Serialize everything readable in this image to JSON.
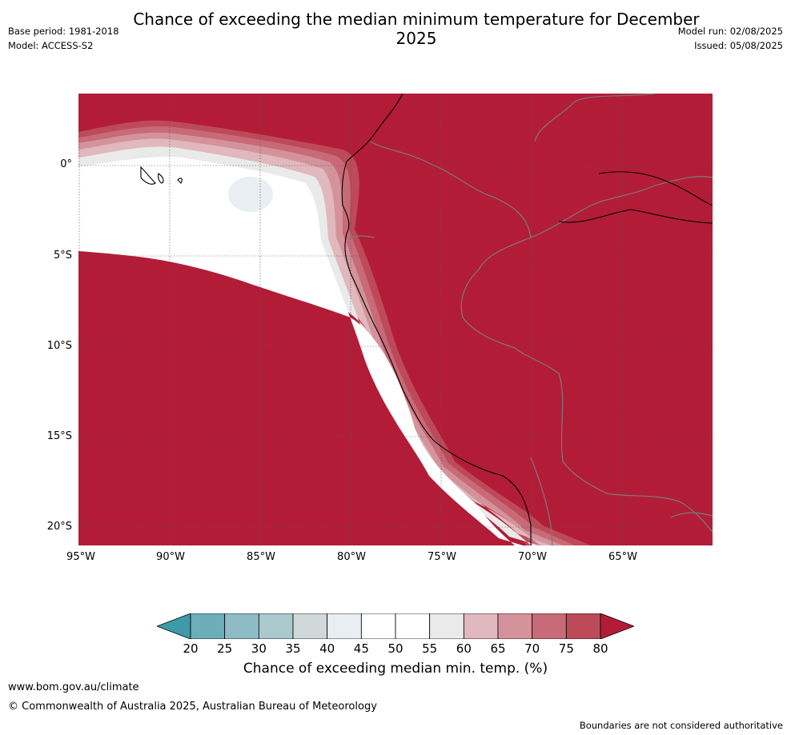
{
  "title": "Chance of exceeding the median minimum temperature for December 2025",
  "meta_left": {
    "base_period": "Base period: 1981-2018",
    "model": "Model: ACCESS-S2"
  },
  "meta_right": {
    "model_run": "Model run: 02/08/2025",
    "issued": "Issued: 05/08/2025"
  },
  "map": {
    "lat_labels": [
      "0°",
      "5°S",
      "10°S",
      "15°S",
      "20°S"
    ],
    "lon_labels": [
      "95°W",
      "90°W",
      "85°W",
      "80°W",
      "75°W",
      "70°W",
      "65°W"
    ],
    "background_color": "#b31c37"
  },
  "colorbar": {
    "label": "Chance of exceeding median min. temp. (%)",
    "ticks": [
      "20",
      "25",
      "30",
      "35",
      "40",
      "45",
      "50",
      "55",
      "60",
      "65",
      "70",
      "75",
      "80"
    ],
    "colors": [
      "#3e9aa8",
      "#6baeb9",
      "#8dbcc5",
      "#a9c9cd",
      "#d0d8da",
      "#e8eef1",
      "#ffffff",
      "#ffffff",
      "#ebeaea",
      "#e0b8bd",
      "#d4939b",
      "#c86a78",
      "#bd4a59",
      "#b31c37"
    ]
  },
  "footer": {
    "url": "www.bom.gov.au/climate",
    "copyright": "© Commonwealth of Australia 2025, Australian Bureau of Meteorology",
    "note": "Boundaries are not considered authoritative"
  }
}
